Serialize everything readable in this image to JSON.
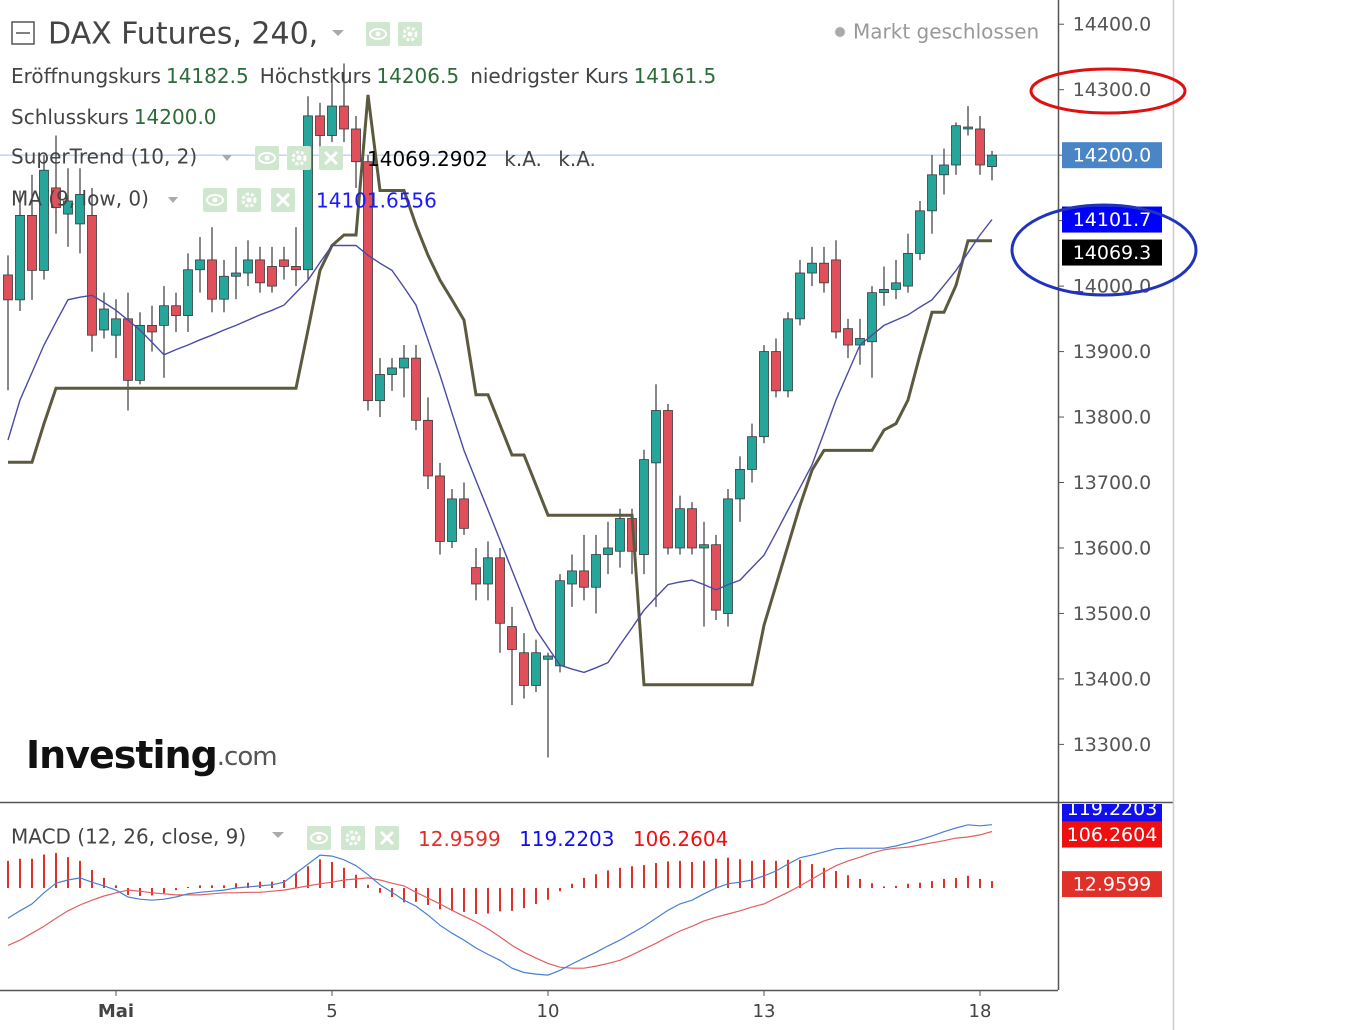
{
  "chart_data": [
    {
      "type": "candlestick",
      "title": "DAX Futures, 240,",
      "status": "Markt geschlossen",
      "ohlc_names": {
        "open": "Eröffnungskurs",
        "high": "Höchstkurs",
        "low": "niedrigster Kurs",
        "close": "Schlusskurs"
      },
      "close_label": "14200.0",
      "watermark": {
        "brand": "Investing",
        "suffix": ".com"
      },
      "categories": [
        null,
        null,
        null,
        null,
        null,
        null,
        null,
        null,
        null,
        "Mai",
        null,
        null,
        null,
        null,
        null,
        null,
        null,
        null,
        null,
        null,
        null,
        null,
        null,
        null,
        null,
        null,
        null,
        "5",
        null,
        null,
        null,
        null,
        null,
        null,
        null,
        null,
        null,
        null,
        null,
        null,
        null,
        null,
        null,
        null,
        null,
        "10",
        null,
        null,
        null,
        null,
        null,
        null,
        null,
        null,
        null,
        null,
        null,
        null,
        null,
        null,
        null,
        null,
        null,
        "13",
        null,
        null,
        null,
        null,
        null,
        null,
        null,
        null,
        null,
        null,
        null,
        null,
        null,
        null,
        null,
        null,
        null,
        "18",
        null
      ],
      "open": [
        14017,
        13979,
        14108,
        14024,
        14150,
        14110,
        14095,
        14108,
        13933,
        13925,
        13950,
        13856,
        13940,
        13940,
        13970,
        13955,
        14025,
        14040,
        13980,
        14015,
        14020,
        14040,
        14030,
        14040,
        14030,
        14025,
        14260,
        14230,
        14275,
        14240,
        14190,
        13825,
        13865,
        13875,
        13890,
        13795,
        13710,
        13610,
        13675,
        13570,
        13545,
        13585,
        13480,
        13440,
        13390,
        13430,
        13420,
        13545,
        13565,
        13540,
        13590,
        13595,
        13645,
        13590,
        13730,
        13810,
        13600,
        13660,
        13600,
        13605,
        13500,
        13675,
        13720,
        13770,
        13900,
        13840,
        13950,
        14020,
        14035,
        14040,
        13935,
        13910,
        13915,
        13990,
        13995,
        14000,
        14050,
        14115,
        14170,
        14185,
        14240,
        14240,
        14182.5
      ],
      "high": [
        14047,
        14146,
        14170,
        14200,
        14230,
        14180,
        14180,
        14150,
        13990,
        13980,
        13990,
        13960,
        13970,
        14000,
        13990,
        14050,
        14075,
        14090,
        14040,
        14060,
        14070,
        14060,
        14060,
        14060,
        14090,
        14290,
        14280,
        14310,
        14340,
        14260,
        14200,
        13890,
        13890,
        13910,
        13910,
        13830,
        13730,
        13690,
        13700,
        13600,
        13610,
        13600,
        13510,
        13470,
        13460,
        13440,
        13560,
        13590,
        13620,
        13620,
        13640,
        13660,
        13660,
        13750,
        13850,
        13820,
        13680,
        13670,
        13640,
        13620,
        13690,
        13740,
        13790,
        13910,
        13920,
        13960,
        14040,
        14060,
        14060,
        14070,
        13950,
        13950,
        14000,
        14030,
        14040,
        14080,
        14130,
        14200,
        14210,
        14250,
        14275,
        14260,
        14206.5
      ],
      "low": [
        13841,
        13962,
        13979,
        14010,
        14080,
        14060,
        14050,
        13900,
        13920,
        13890,
        13810,
        13850,
        13900,
        13860,
        13930,
        13930,
        13990,
        13960,
        13960,
        13980,
        14000,
        13990,
        13990,
        14010,
        14000,
        14010,
        14210,
        14220,
        14220,
        14150,
        13810,
        13800,
        13840,
        13830,
        13780,
        13690,
        13590,
        13600,
        13620,
        13520,
        13520,
        13440,
        13360,
        13370,
        13380,
        13280,
        13410,
        13510,
        13520,
        13500,
        13560,
        13570,
        13560,
        13560,
        13510,
        13590,
        13590,
        13590,
        13480,
        13490,
        13480,
        13640,
        13700,
        13760,
        13830,
        13830,
        13940,
        14000,
        13990,
        13920,
        13890,
        13880,
        13860,
        13970,
        13980,
        13990,
        14040,
        14080,
        14140,
        14170,
        14230,
        14170,
        14161.5
      ],
      "close": [
        13979,
        14108,
        14024,
        14177,
        14120,
        14130,
        14140,
        13925,
        13965,
        13950,
        13856,
        13940,
        13930,
        13970,
        13955,
        14025,
        14040,
        13980,
        14015,
        14020,
        14040,
        14005,
        14000,
        14030,
        14025,
        14260,
        14230,
        14275,
        14240,
        14190,
        13825,
        13865,
        13875,
        13890,
        13795,
        13710,
        13610,
        13675,
        13630,
        13545,
        13585,
        13485,
        13445,
        13390,
        13440,
        13435,
        13550,
        13565,
        13540,
        13590,
        13600,
        13645,
        13595,
        13735,
        13810,
        13600,
        13660,
        13600,
        13605,
        13505,
        13675,
        13720,
        13770,
        13900,
        13840,
        13950,
        14020,
        14035,
        14005,
        13930,
        13910,
        13920,
        13990,
        13995,
        14005,
        14050,
        14115,
        14170,
        14185,
        14245,
        14243,
        14185,
        14200
      ],
      "up_color": "#26a69a",
      "down_color": "#e0505a",
      "wick_color": "#3a3a3a",
      "last_price_color": "#4a86c5",
      "ylim": [
        13212,
        14437
      ],
      "yticks": [
        {
          "value": 13300,
          "label": "13300.0"
        },
        {
          "value": 13400,
          "label": "13400.0"
        },
        {
          "value": 13500,
          "label": "13500.0"
        },
        {
          "value": 13600,
          "label": "13600.0"
        },
        {
          "value": 13700,
          "label": "13700.0"
        },
        {
          "value": 13800,
          "label": "13800.0"
        },
        {
          "value": 13900,
          "label": "13900.0"
        },
        {
          "value": 14000,
          "label": "14000.0"
        },
        {
          "value": 14100,
          "label": "14100.0"
        },
        {
          "value": 14200,
          "label": "14200.0"
        },
        {
          "value": 14300,
          "label": "14300.0"
        },
        {
          "value": 14400,
          "label": "14400.0"
        }
      ],
      "overlays": [
        {
          "name": "SuperTrend (10, 2)",
          "color": "#5b5a3e",
          "box_color": "#000000",
          "text_color": "#000000",
          "extra_values": [
            "k.A.",
            "k.A."
          ],
          "last_label": "14069.3",
          "values": [
            13731,
            13731,
            13731,
            13790,
            13844,
            13844,
            13844,
            13844,
            13844,
            13844,
            13844,
            13844,
            13844,
            13844,
            13844,
            13844,
            13844,
            13844,
            13844,
            13844,
            13844,
            13844,
            13844,
            13844,
            13844,
            13933,
            14024,
            14062,
            14078,
            14078,
            14292,
            14146,
            14146,
            14146,
            14093,
            14047,
            14009,
            13979,
            13948,
            13834,
            13834,
            13788,
            13742,
            13742,
            13696,
            13650,
            13650,
            13650,
            13650,
            13650,
            13650,
            13650,
            13650,
            13391,
            13391,
            13391,
            13391,
            13391,
            13391,
            13391,
            13391,
            13391,
            13391,
            13482,
            13543,
            13604,
            13665,
            13719,
            13749,
            13749,
            13749,
            13749,
            13749,
            13780,
            13790,
            13826,
            13895,
            13960,
            13960,
            14001,
            14069.29,
            14069.29,
            14069.2902
          ]
        },
        {
          "name": "MA (9, low, 0)",
          "color": "#4a4aa8",
          "box_color": "#0000ff",
          "text_color": "#1a1aff",
          "last_label": "14101.7",
          "values": [
            13765,
            13826,
            13868,
            13910,
            13945,
            13979,
            13983,
            13986,
            13975,
            13963,
            13948,
            13933,
            13914,
            13895,
            13903,
            13910,
            13918,
            13925,
            13933,
            13940,
            13948,
            13956,
            13963,
            13971,
            13990,
            14009,
            14036,
            14062,
            14062,
            14062,
            14047,
            14035,
            14024,
            13998,
            13971,
            13918,
            13864,
            13806,
            13749,
            13703,
            13658,
            13612,
            13566,
            13520,
            13475,
            13448,
            13421,
            13415,
            13410,
            13417,
            13425,
            13452,
            13478,
            13505,
            13525,
            13544,
            13548,
            13551,
            13544,
            13536,
            13544,
            13551,
            13570,
            13589,
            13623,
            13658,
            13692,
            13727,
            13776,
            13826,
            13868,
            13910,
            13925,
            13940,
            13948,
            13956,
            13968,
            13979,
            14001,
            14024,
            14051,
            14078,
            14101.6556
          ]
        }
      ]
    },
    {
      "type": "macd",
      "title": "MACD (12, 26, close, 9)",
      "ylim": [
        -192,
        160
      ],
      "histogram": {
        "color": "#e0302a",
        "values": [
          51,
          55,
          55,
          63,
          66,
          58,
          51,
          34,
          19,
          5,
          -13,
          -15,
          -14,
          -10,
          -4,
          2,
          5,
          5,
          5,
          9,
          10,
          12,
          12,
          15,
          28,
          41,
          54,
          49,
          38,
          25,
          6,
          -9,
          -17,
          -27,
          -26,
          -32,
          -40,
          -43,
          -45,
          -49,
          -48,
          -44,
          -43,
          -38,
          -30,
          -22,
          -6,
          8,
          19,
          26,
          33,
          38,
          41,
          43,
          47,
          50,
          51,
          49,
          51,
          55,
          57,
          54,
          51,
          53,
          51,
          53,
          53,
          45,
          38,
          32,
          24,
          17,
          9,
          3,
          4,
          8,
          10,
          13,
          17,
          19,
          23,
          17,
          12.9599
        ]
      },
      "macd": {
        "color": "#4a7fd4",
        "box_color": "#1010ee",
        "values": [
          -57,
          -43,
          -30,
          -9,
          9,
          15,
          19,
          11,
          4,
          -4,
          -17,
          -21,
          -23,
          -21,
          -17,
          -11,
          -8,
          -6,
          -4,
          0,
          2,
          4,
          6,
          11,
          28,
          45,
          62,
          60,
          53,
          42,
          25,
          6,
          -8,
          -23,
          -34,
          -51,
          -70,
          -85,
          -98,
          -113,
          -125,
          -136,
          -151,
          -159,
          -162,
          -164,
          -155,
          -143,
          -132,
          -121,
          -109,
          -98,
          -85,
          -72,
          -57,
          -42,
          -30,
          -23,
          -11,
          0,
          8,
          11,
          15,
          23,
          32,
          45,
          57,
          62,
          68,
          74,
          75,
          75,
          75,
          75,
          79,
          85,
          91,
          98,
          106,
          113,
          119,
          117,
          119.2203
        ]
      },
      "signal": {
        "color": "#e06060",
        "box_color": "#ee1010",
        "values": [
          -108,
          -98,
          -85,
          -72,
          -57,
          -43,
          -32,
          -23,
          -15,
          -9,
          -4,
          -6,
          -9,
          -11,
          -13,
          -13,
          -13,
          -11,
          -9,
          -9,
          -8,
          -8,
          -6,
          -4,
          0,
          4,
          8,
          11,
          15,
          17,
          19,
          15,
          9,
          4,
          -8,
          -19,
          -30,
          -42,
          -53,
          -64,
          -77,
          -92,
          -108,
          -121,
          -132,
          -142,
          -149,
          -151,
          -151,
          -147,
          -142,
          -136,
          -126,
          -115,
          -104,
          -92,
          -81,
          -72,
          -62,
          -55,
          -49,
          -43,
          -36,
          -30,
          -19,
          -8,
          4,
          17,
          30,
          42,
          51,
          58,
          66,
          72,
          75,
          77,
          81,
          85,
          89,
          94,
          96,
          100,
          106.2604
        ]
      }
    }
  ]
}
